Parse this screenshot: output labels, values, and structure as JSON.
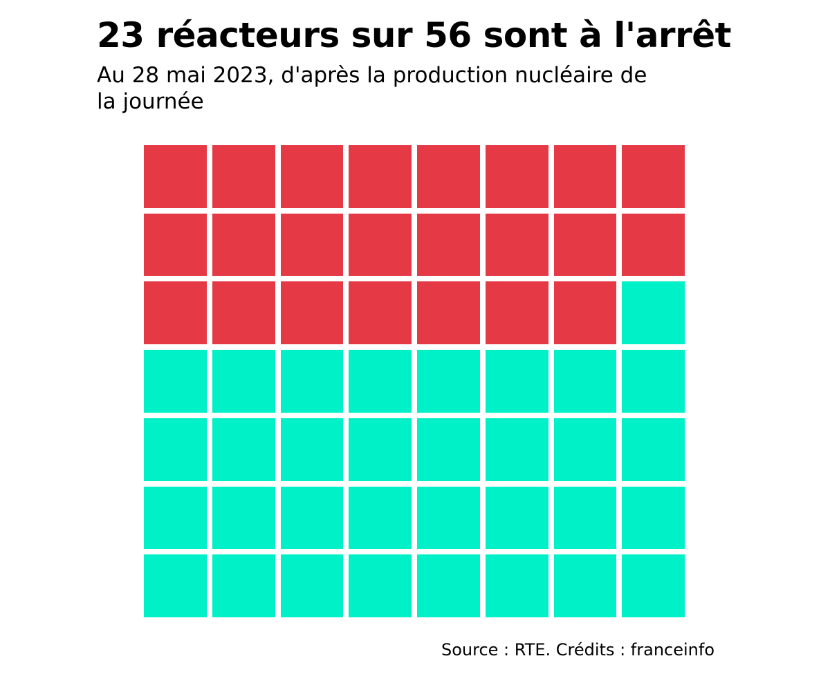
{
  "header": {
    "title": "23 réacteurs sur 56 sont à l'arrêt",
    "subtitle": "Au 28 mai 2023, d'après la production nucléaire de la journée"
  },
  "chart_data": {
    "type": "waffle",
    "title": "23 réacteurs sur 56 sont à l'arrêt",
    "subtitle": "Au 28 mai 2023, d'après la production nucléaire de la journée",
    "total": 56,
    "columns": 8,
    "rows": 7,
    "categories": [
      {
        "key": "stopped",
        "value": 23,
        "color": "#e63946"
      },
      {
        "key": "running",
        "value": 33,
        "color": "#00f0c8"
      }
    ]
  },
  "footer": {
    "source": "Source : RTE. Crédits : franceinfo"
  }
}
